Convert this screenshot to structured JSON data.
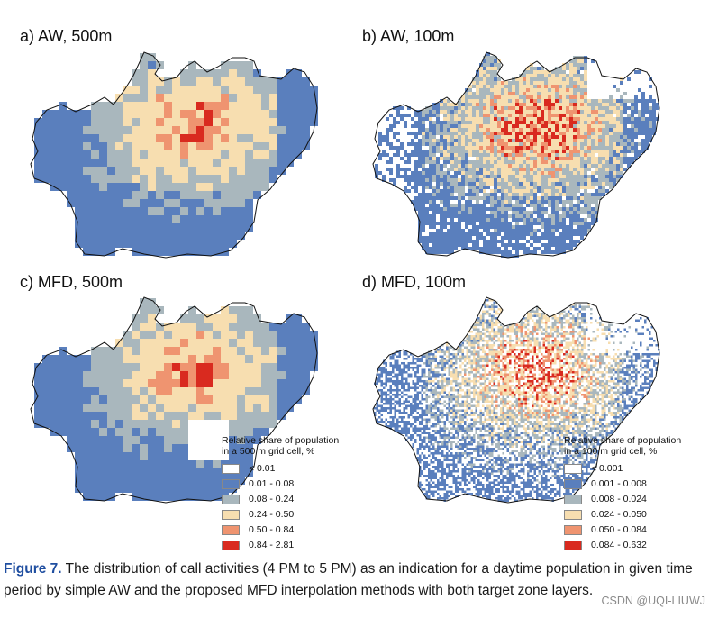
{
  "panels": [
    {
      "id": "a",
      "title": "a) AW, 500m"
    },
    {
      "id": "b",
      "title": "b) AW, 100m"
    },
    {
      "id": "c",
      "title": "c) MFD, 500m"
    },
    {
      "id": "d",
      "title": "d) MFD, 100m"
    }
  ],
  "legend_500": {
    "title_line1": "Relative share of population",
    "title_line2": "in a 500 m grid cell, %",
    "items": [
      {
        "label": "< 0.01",
        "color": "#ffffff"
      },
      {
        "label": "0.01 - 0.08",
        "color": "#5a7fbd"
      },
      {
        "label": "0.08 - 0.24",
        "color": "#a9b7bd"
      },
      {
        "label": "0.24 - 0.50",
        "color": "#f7deb0"
      },
      {
        "label": "0.50 - 0.84",
        "color": "#ef9470"
      },
      {
        "label": "0.84 - 2.81",
        "color": "#d92a1f"
      }
    ]
  },
  "legend_100": {
    "title_line1": "Relative share of population",
    "title_line2": "in a 100 m grid cell, %",
    "items": [
      {
        "label": "< 0.001",
        "color": "#ffffff"
      },
      {
        "label": "0.001 - 0.008",
        "color": "#5a7fbd"
      },
      {
        "label": "0.008 - 0.024",
        "color": "#a9b7bd"
      },
      {
        "label": "0.024 - 0.050",
        "color": "#f7deb0"
      },
      {
        "label": "0.050 - 0.084",
        "color": "#ef9470"
      },
      {
        "label": "0.084 - 0.632",
        "color": "#d92a1f"
      }
    ]
  },
  "caption": {
    "label": "Figure 7.",
    "text": "The distribution of call activities (4 PM to 5 PM) as an indication for a daytime population in given time period by simple AW and the proposed MFD interpolation methods with both target zone layers."
  },
  "watermark": "CSDN @UQI-LIUWJ"
}
